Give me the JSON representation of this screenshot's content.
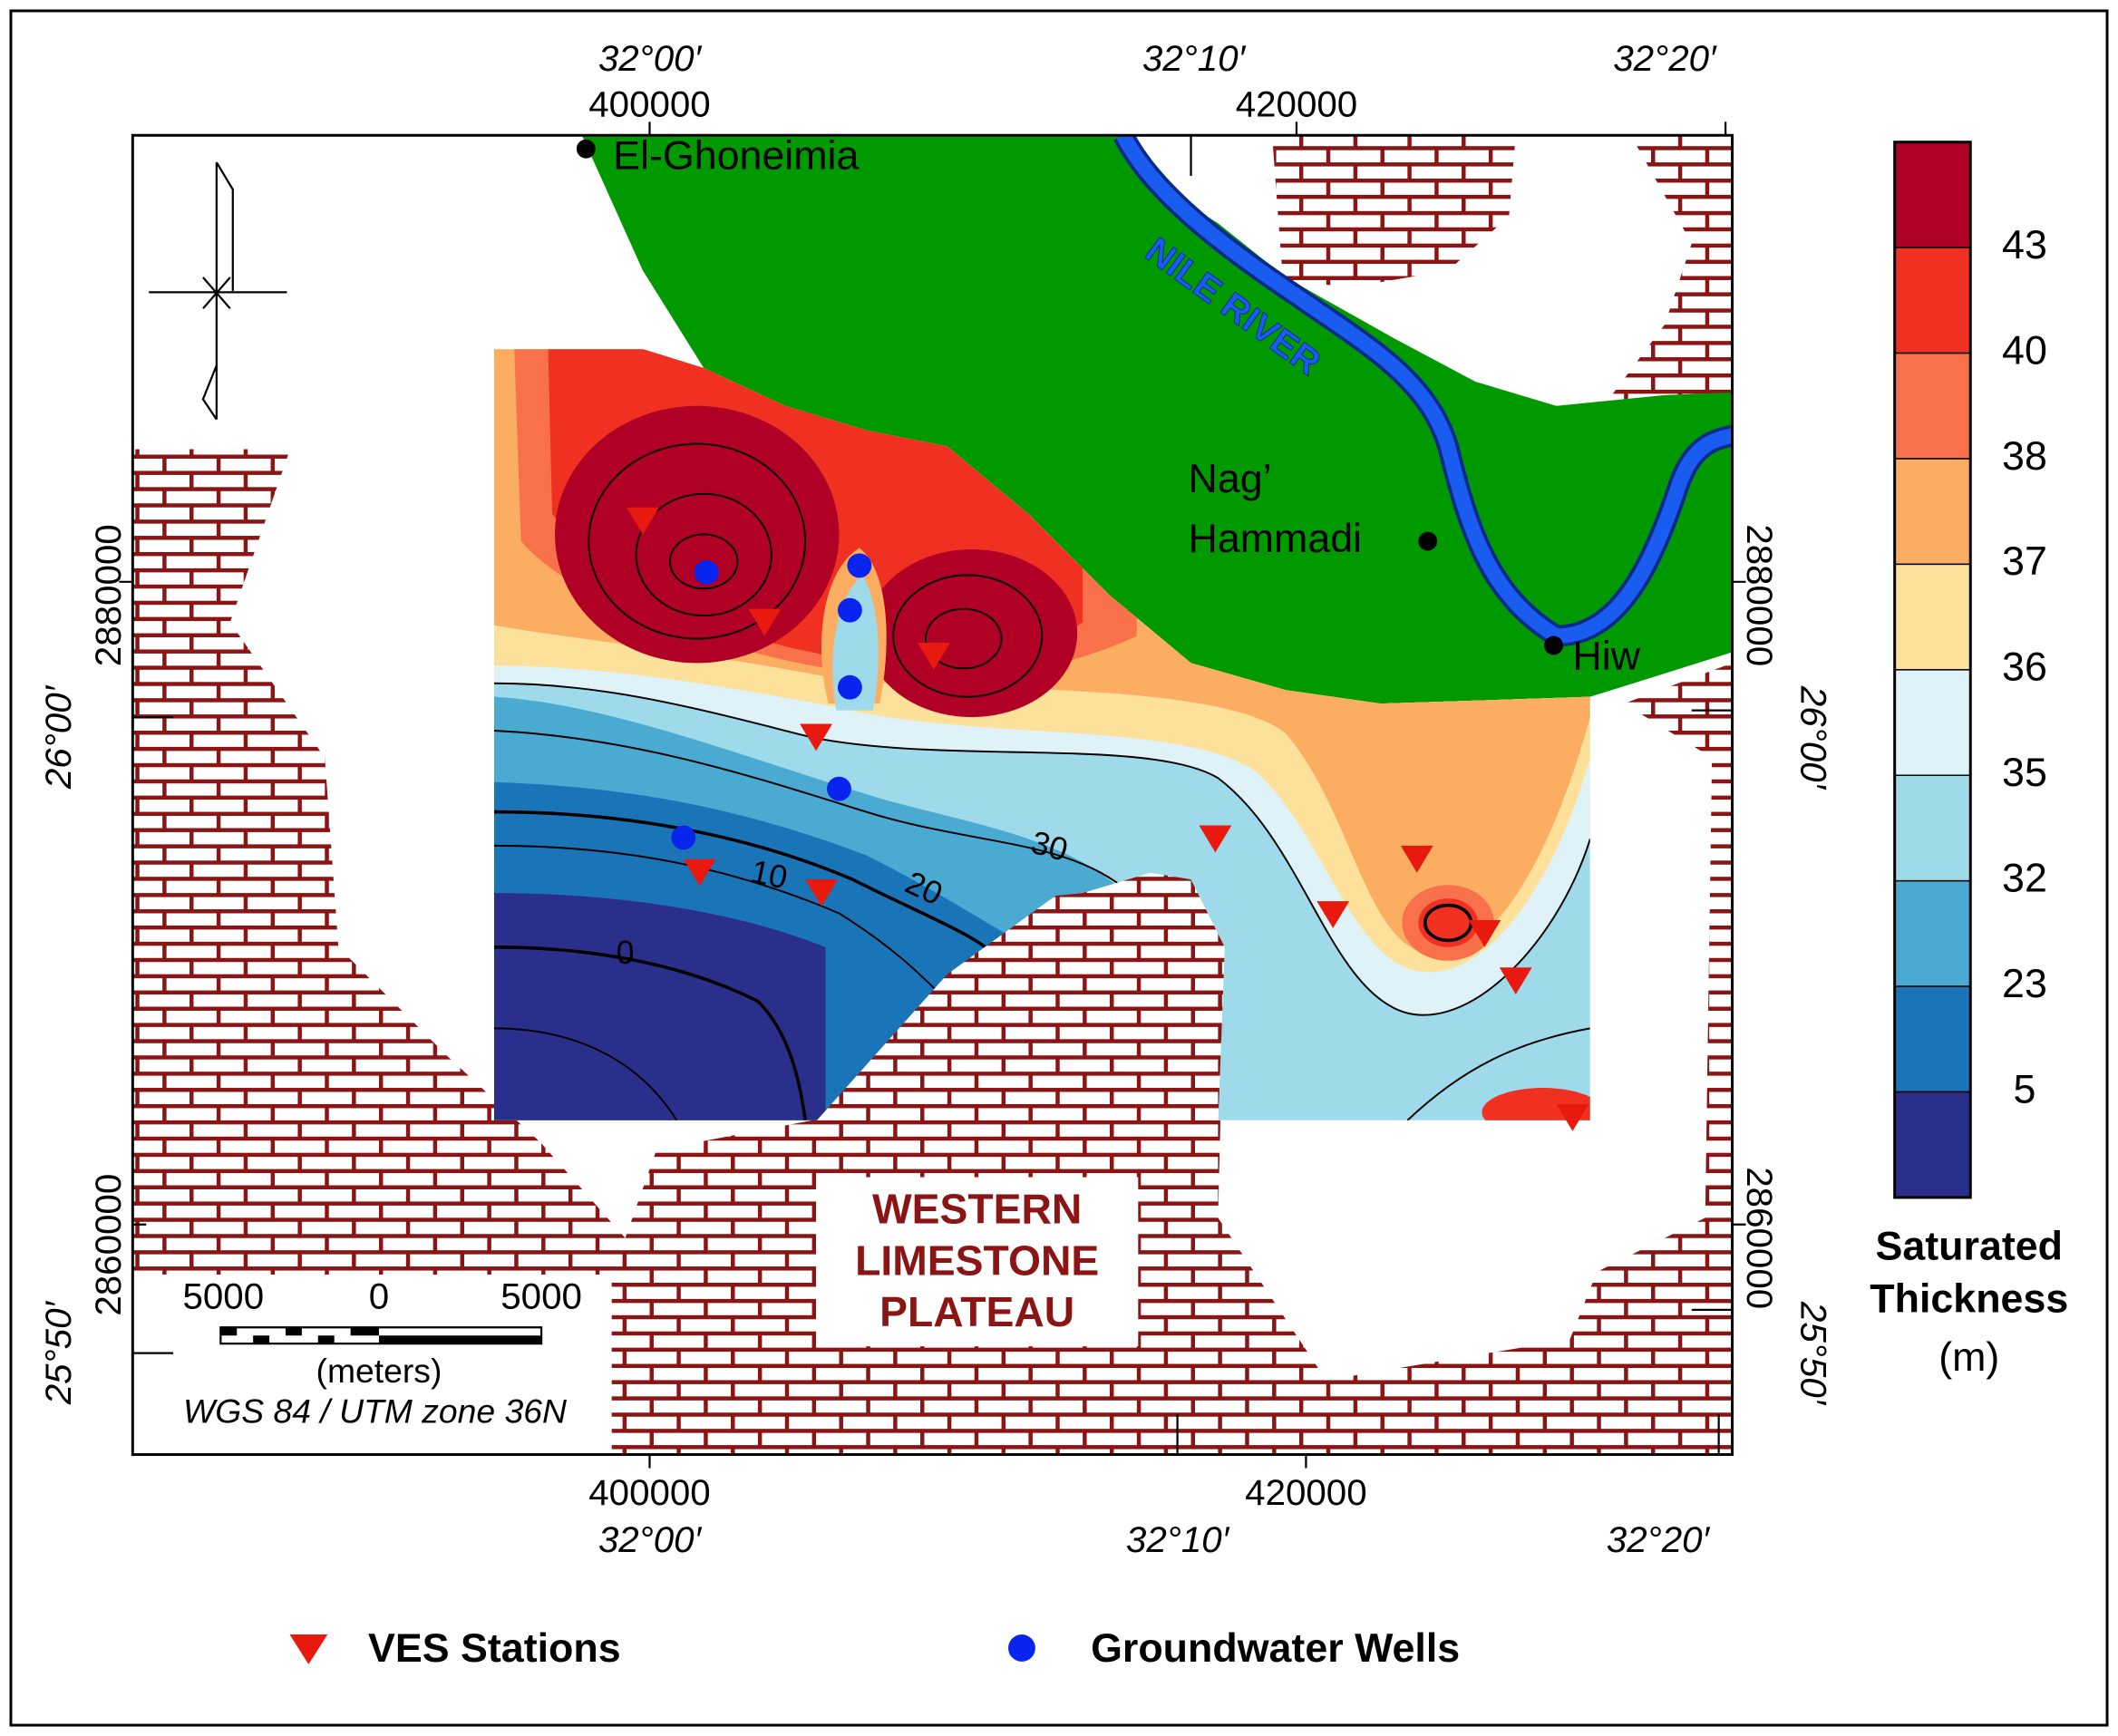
{
  "map": {
    "top_axis": {
      "lon_labels": [
        "32°00′",
        "32°10′",
        "32°20′"
      ],
      "utm_labels": [
        "400000",
        "420000"
      ]
    },
    "bottom_axis": {
      "lon_labels": [
        "32°00′",
        "32°10′",
        "32°20′"
      ],
      "utm_labels": [
        "400000",
        "420000"
      ]
    },
    "left_axis": {
      "lat_labels": [
        "26°00′",
        "25°50′"
      ],
      "utm_labels": [
        "2880000",
        "2860000"
      ]
    },
    "right_axis": {
      "lat_labels": [
        "26°00′",
        "25°50′"
      ],
      "utm_labels": [
        "2880000",
        "2860000"
      ]
    },
    "places": [
      {
        "lines": [
          "El-Ghoneimia"
        ]
      },
      {
        "lines": [
          "Nag’",
          "Hammadi"
        ]
      },
      {
        "lines": [
          "Hiw"
        ]
      }
    ],
    "river_label": "NILE RIVER",
    "plateau_label": [
      "WESTERN",
      "LIMESTONE",
      "PLATEAU"
    ],
    "contour_labels": [
      "0",
      "10",
      "20",
      "30"
    ],
    "scale_bar": {
      "ticks": [
        "5000",
        "0",
        "5000"
      ],
      "unit": "(meters)"
    },
    "crs": "WGS 84 / UTM zone 36N"
  },
  "colorbar": {
    "title": [
      "Saturated",
      "Thickness"
    ],
    "unit": "(m)",
    "labels": [
      "43",
      "40",
      "38",
      "37",
      "36",
      "35",
      "32",
      "23",
      "5"
    ],
    "colors": [
      "#b10026",
      "#f03020",
      "#f8714a",
      "#fbae62",
      "#fde19a",
      "#dff2f8",
      "#9fdaea",
      "#4aaad2",
      "#1a74b8",
      "#2b2f8c"
    ]
  },
  "legend": [
    {
      "label": "VES Stations"
    },
    {
      "label": "Groundwater Wells"
    }
  ]
}
